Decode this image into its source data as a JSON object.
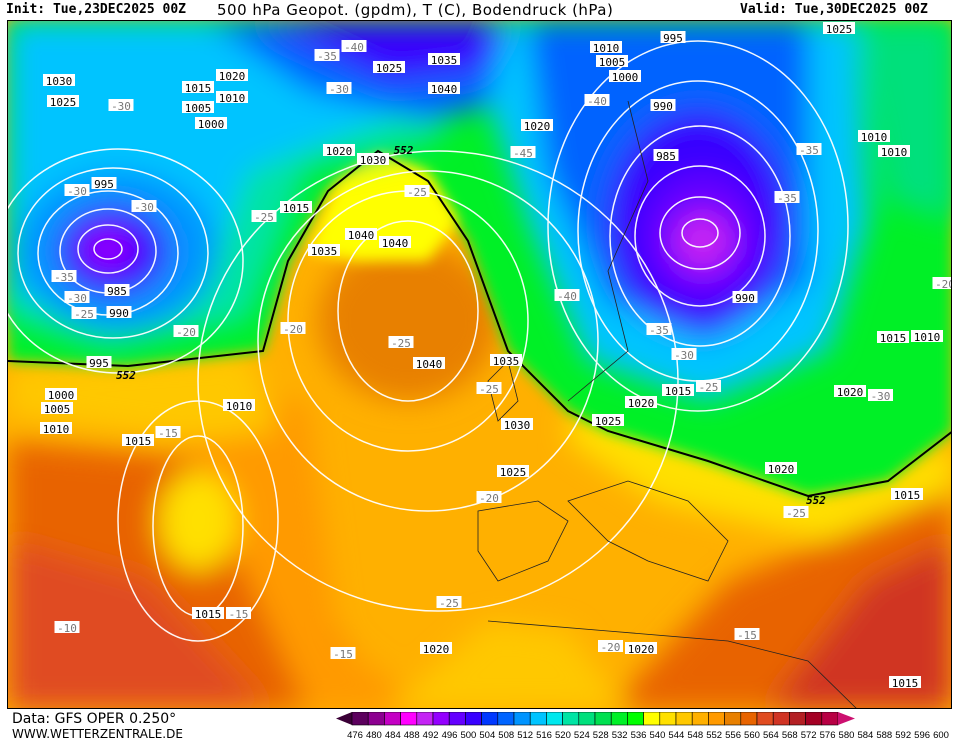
{
  "header": {
    "init": "Init: Tue,23DEC2025 00Z",
    "title": "500 hPa Geopot. (gpdm), T (C), Bodendruck (hPa)",
    "valid": "Valid: Tue,30DEC2025 00Z"
  },
  "footer": {
    "data_source": "Data: GFS OPER 0.250°",
    "website": "WWW.WETTERZENTRALE.DE"
  },
  "colorbar": {
    "labels": [
      "476",
      "480",
      "484",
      "488",
      "492",
      "496",
      "500",
      "504",
      "508",
      "512",
      "516",
      "520",
      "524",
      "528",
      "532",
      "536",
      "540",
      "544",
      "548",
      "552",
      "556",
      "560",
      "564",
      "568",
      "572",
      "576",
      "580",
      "584",
      "588",
      "592",
      "596",
      "600"
    ],
    "colors": [
      "#5c005e",
      "#8c0090",
      "#c400c4",
      "#ff00ff",
      "#c424f4",
      "#9400ff",
      "#6400ff",
      "#3800ff",
      "#0038ff",
      "#0064ff",
      "#0094ff",
      "#00c4ff",
      "#00e8ee",
      "#00e4a4",
      "#00e07c",
      "#00e050",
      "#00f028",
      "#00ff00",
      "#ffff00",
      "#ffe000",
      "#ffc800",
      "#ffb000",
      "#ff9a00",
      "#e88000",
      "#e86400",
      "#e04c20",
      "#d03424",
      "#b42024",
      "#a40024",
      "#b80044"
    ],
    "arrow_low": "#3a0036",
    "arrow_high": "#cc1070"
  },
  "map": {
    "pressure_labels": [
      "1030",
      "1025",
      "1015",
      "1020",
      "1010",
      "1005",
      "1000",
      "995",
      "985",
      "990",
      "995",
      "1000",
      "1005",
      "1010",
      "1015",
      "1010",
      "1015",
      "1020",
      "1025",
      "1030",
      "1035",
      "1040",
      "1040",
      "1040",
      "1035",
      "1015",
      "1020",
      "1030",
      "1025",
      "1035",
      "1040",
      "1020",
      "1010",
      "1005",
      "1000",
      "995",
      "990",
      "985",
      "990",
      "1015",
      "1020",
      "1025",
      "1020",
      "1015",
      "1020",
      "1015",
      "1010",
      "1010",
      "1010",
      "1025",
      "1015",
      "1020"
    ],
    "temperature_labels": [
      "-40",
      "-30",
      "-35",
      "-30",
      "-30",
      "-30",
      "-25",
      "-25",
      "-35",
      "-30",
      "-25",
      "-20",
      "-20",
      "-25",
      "-25",
      "-20",
      "-15",
      "-15",
      "-10",
      "-15",
      "-25",
      "-20",
      "-15",
      "-25",
      "-30",
      "-25",
      "-30",
      "-35",
      "-40",
      "-45",
      "-40",
      "-35",
      "-35",
      "-20"
    ],
    "geopotential_labels": [
      "552",
      "552",
      "552"
    ]
  }
}
